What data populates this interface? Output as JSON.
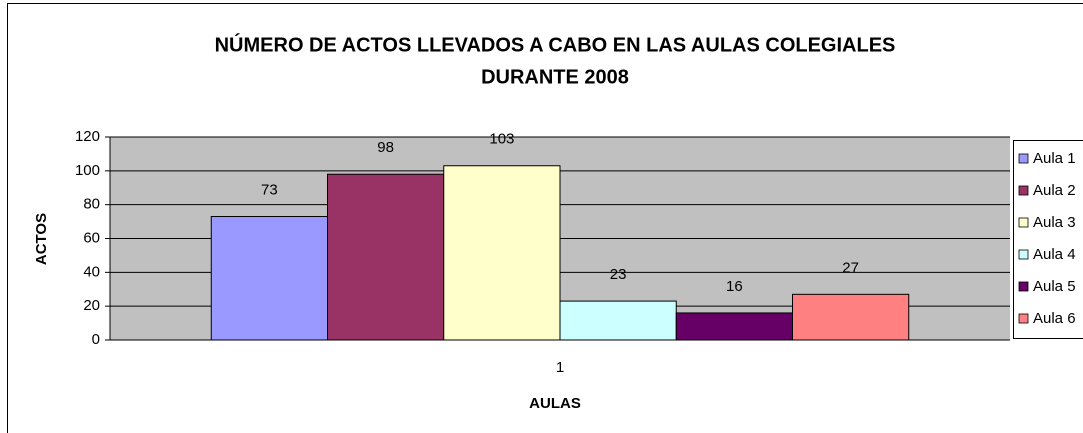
{
  "chart_data": {
    "type": "bar",
    "title": [
      "NÚMERO DE ACTOS LLEVADOS A CABO EN LAS AULAS COLEGIALES",
      "DURANTE 2008"
    ],
    "x_label": "AULAS",
    "y_label": "ACTOS",
    "categories": [
      "1"
    ],
    "series": [
      {
        "name": "Aula 1",
        "color": "#9999ff",
        "values": [
          73
        ]
      },
      {
        "name": "Aula 2",
        "color": "#993366",
        "values": [
          98
        ]
      },
      {
        "name": "Aula 3",
        "color": "#ffffcc",
        "values": [
          103
        ]
      },
      {
        "name": "Aula 4",
        "color": "#ccffff",
        "values": [
          23
        ]
      },
      {
        "name": "Aula 5",
        "color": "#660066",
        "values": [
          16
        ]
      },
      {
        "name": "Aula 6",
        "color": "#ff8080",
        "values": [
          27
        ]
      }
    ],
    "ylim": [
      0,
      120
    ],
    "yticks": [
      0,
      20,
      40,
      60,
      80,
      100,
      120
    ],
    "grid": true,
    "legend": "right"
  }
}
